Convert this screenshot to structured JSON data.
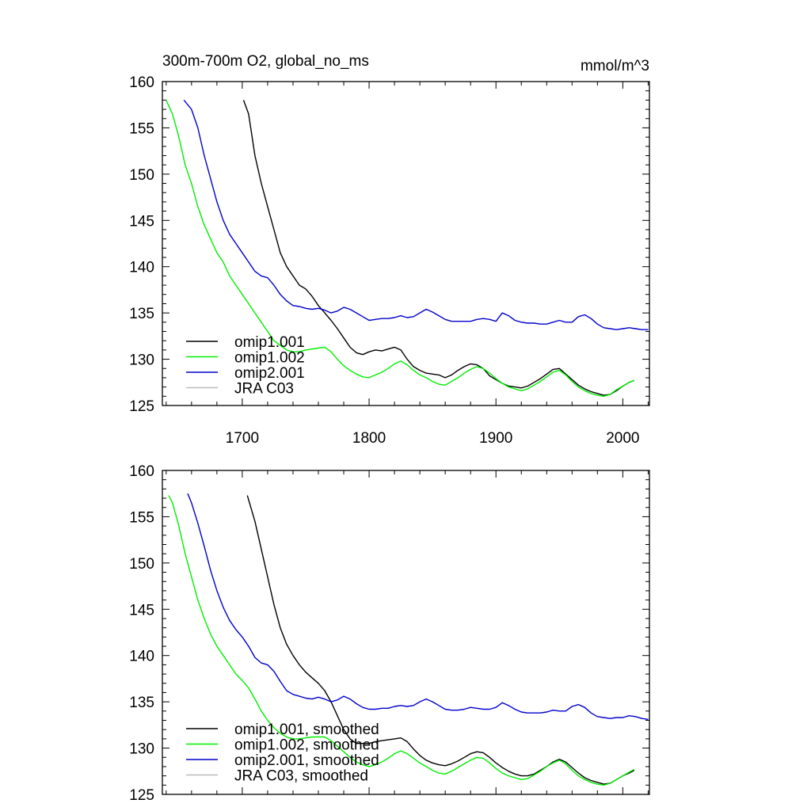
{
  "chart_data": [
    {
      "type": "line",
      "title": "300m-700m O2, global_no_ms",
      "units": "mmol/m^3",
      "xlim": [
        1637,
        2021
      ],
      "ylim": [
        125,
        160
      ],
      "x_ticks": [
        1700,
        1800,
        1900,
        2000
      ],
      "y_ticks": [
        125,
        130,
        135,
        140,
        145,
        150,
        155,
        160
      ],
      "x_tick_labels_shown": true,
      "legend_position": "bottom-left",
      "smoothed": false,
      "series": [
        {
          "name": "omip1.001",
          "color": "#000000",
          "x": [
            1701,
            1705,
            1710,
            1715,
            1720,
            1725,
            1730,
            1735,
            1740,
            1745,
            1750,
            1755,
            1760,
            1765,
            1770,
            1775,
            1780,
            1785,
            1790,
            1795,
            1800,
            1805,
            1810,
            1815,
            1820,
            1825,
            1830,
            1835,
            1840,
            1845,
            1850,
            1855,
            1860,
            1865,
            1870,
            1875,
            1880,
            1885,
            1890,
            1895,
            1900,
            1905,
            1910,
            1915,
            1920,
            1925,
            1930,
            1935,
            1940,
            1945,
            1950,
            1955,
            1960,
            1965,
            1970,
            1975,
            1980,
            1985,
            1990,
            1995,
            2000,
            2005,
            2009
          ],
          "y": [
            158.0,
            156.5,
            152.0,
            149.0,
            146.5,
            144.0,
            141.5,
            140.0,
            139.0,
            138.0,
            137.6,
            136.8,
            135.8,
            135.0,
            134.2,
            133.3,
            132.3,
            131.3,
            130.7,
            130.5,
            130.8,
            131.0,
            130.9,
            131.1,
            131.3,
            131.0,
            130.0,
            129.2,
            128.8,
            128.5,
            128.4,
            128.3,
            128.0,
            128.3,
            128.8,
            129.2,
            129.5,
            129.4,
            129.0,
            128.2,
            127.8,
            127.4,
            127.1,
            127.0,
            126.9,
            127.1,
            127.5,
            127.9,
            128.4,
            128.9,
            129.0,
            128.4,
            127.8,
            127.2,
            126.8,
            126.5,
            126.3,
            126.1,
            126.2,
            126.6,
            127.1,
            127.5,
            127.7
          ]
        },
        {
          "name": "omip1.002",
          "color": "#00ee00",
          "x": [
            1640,
            1645,
            1650,
            1655,
            1660,
            1665,
            1670,
            1675,
            1680,
            1685,
            1690,
            1695,
            1700,
            1705,
            1710,
            1715,
            1720,
            1725,
            1730,
            1735,
            1740,
            1745,
            1750,
            1755,
            1760,
            1765,
            1770,
            1775,
            1780,
            1785,
            1790,
            1795,
            1800,
            1805,
            1810,
            1815,
            1820,
            1825,
            1830,
            1835,
            1840,
            1845,
            1850,
            1855,
            1860,
            1865,
            1870,
            1875,
            1880,
            1885,
            1890,
            1895,
            1900,
            1905,
            1910,
            1915,
            1920,
            1925,
            1930,
            1935,
            1940,
            1945,
            1950,
            1955,
            1960,
            1965,
            1970,
            1975,
            1980,
            1985,
            1990,
            1995,
            2000,
            2005,
            2009
          ],
          "y": [
            158.0,
            156.5,
            154.0,
            151.0,
            149.0,
            146.5,
            144.5,
            143.0,
            141.5,
            140.5,
            139.0,
            138.0,
            137.0,
            136.0,
            135.0,
            134.0,
            133.0,
            132.0,
            131.5,
            131.0,
            130.8,
            130.8,
            131.0,
            131.1,
            131.2,
            131.3,
            130.8,
            130.0,
            129.3,
            128.8,
            128.4,
            128.1,
            128.0,
            128.3,
            128.6,
            129.0,
            129.5,
            129.8,
            129.4,
            128.8,
            128.3,
            128.0,
            127.6,
            127.3,
            127.2,
            127.6,
            128.0,
            128.5,
            128.9,
            129.2,
            129.0,
            128.5,
            127.9,
            127.4,
            127.0,
            126.8,
            126.6,
            126.8,
            127.2,
            127.6,
            128.1,
            128.6,
            128.8,
            128.3,
            127.6,
            127.0,
            126.6,
            126.3,
            126.1,
            126.0,
            126.2,
            126.7,
            127.1,
            127.5,
            127.7
          ]
        },
        {
          "name": "omip2.001",
          "color": "#0000cc",
          "x": [
            1654,
            1660,
            1665,
            1670,
            1675,
            1680,
            1685,
            1690,
            1695,
            1700,
            1705,
            1710,
            1715,
            1720,
            1725,
            1730,
            1735,
            1740,
            1745,
            1750,
            1755,
            1760,
            1765,
            1770,
            1775,
            1780,
            1785,
            1790,
            1795,
            1800,
            1805,
            1810,
            1815,
            1820,
            1825,
            1830,
            1835,
            1840,
            1845,
            1850,
            1855,
            1860,
            1865,
            1870,
            1875,
            1880,
            1885,
            1890,
            1895,
            1900,
            1905,
            1910,
            1915,
            1920,
            1925,
            1930,
            1935,
            1940,
            1945,
            1950,
            1955,
            1960,
            1965,
            1970,
            1975,
            1980,
            1985,
            1990,
            1995,
            2000,
            2005,
            2010,
            2015,
            2020
          ],
          "y": [
            158.0,
            157.0,
            155.0,
            152.0,
            149.5,
            147.0,
            145.0,
            143.5,
            142.5,
            141.5,
            140.5,
            139.5,
            139.0,
            138.8,
            138.0,
            137.0,
            136.3,
            135.8,
            135.7,
            135.5,
            135.4,
            135.5,
            135.3,
            135.0,
            135.2,
            135.6,
            135.4,
            135.0,
            134.6,
            134.2,
            134.3,
            134.4,
            134.4,
            134.5,
            134.7,
            134.5,
            134.6,
            135.0,
            135.4,
            135.1,
            134.7,
            134.3,
            134.1,
            134.1,
            134.1,
            134.1,
            134.3,
            134.4,
            134.3,
            134.1,
            135.0,
            134.7,
            134.2,
            134.0,
            133.9,
            133.9,
            133.8,
            133.8,
            134.0,
            134.2,
            134.0,
            134.0,
            134.6,
            134.8,
            134.4,
            133.8,
            133.4,
            133.3,
            133.2,
            133.3,
            133.4,
            133.3,
            133.2,
            133.2
          ]
        },
        {
          "name": "JRA C03",
          "color": "#bbbbbb",
          "x": [],
          "y": []
        }
      ]
    },
    {
      "type": "line",
      "title": "",
      "units": "",
      "xlim": [
        1637,
        2021
      ],
      "ylim": [
        125,
        160
      ],
      "x_ticks": [
        1700,
        1800,
        1900,
        2000
      ],
      "y_ticks": [
        125,
        130,
        135,
        140,
        145,
        150,
        155,
        160
      ],
      "x_tick_labels_shown": false,
      "legend_position": "bottom-left",
      "smoothed": true,
      "series": [
        {
          "name": "omip1.001, smoothed",
          "color": "#000000",
          "x": [
            1704,
            1710,
            1715,
            1720,
            1725,
            1730,
            1735,
            1740,
            1745,
            1750,
            1755,
            1760,
            1765,
            1770,
            1775,
            1780,
            1785,
            1790,
            1795,
            1800,
            1805,
            1810,
            1815,
            1820,
            1825,
            1830,
            1835,
            1840,
            1845,
            1850,
            1855,
            1860,
            1865,
            1870,
            1875,
            1880,
            1885,
            1890,
            1895,
            1900,
            1905,
            1910,
            1915,
            1920,
            1925,
            1930,
            1935,
            1940,
            1945,
            1950,
            1955,
            1960,
            1965,
            1970,
            1975,
            1980,
            1985,
            1990,
            1995,
            2000,
            2005,
            2009
          ],
          "y": [
            157.3,
            154.5,
            151.5,
            148.5,
            145.5,
            143.0,
            141.2,
            140.0,
            139.0,
            138.2,
            137.6,
            137.0,
            136.2,
            135.0,
            133.5,
            132.0,
            131.0,
            130.5,
            130.5,
            130.5,
            130.7,
            130.8,
            130.9,
            131.0,
            131.1,
            130.7,
            129.9,
            129.2,
            128.7,
            128.4,
            128.2,
            128.1,
            128.3,
            128.6,
            129.0,
            129.4,
            129.6,
            129.5,
            129.0,
            128.4,
            127.9,
            127.5,
            127.2,
            127.0,
            127.0,
            127.2,
            127.6,
            128.0,
            128.5,
            128.8,
            128.5,
            127.9,
            127.3,
            126.8,
            126.5,
            126.3,
            126.1,
            126.2,
            126.6,
            127.0,
            127.3,
            127.6
          ]
        },
        {
          "name": "omip1.002, smoothed",
          "color": "#00ee00",
          "x": [
            1642,
            1645,
            1650,
            1655,
            1660,
            1665,
            1670,
            1675,
            1680,
            1685,
            1690,
            1695,
            1700,
            1705,
            1710,
            1715,
            1720,
            1725,
            1730,
            1735,
            1740,
            1745,
            1750,
            1755,
            1760,
            1765,
            1770,
            1775,
            1780,
            1785,
            1790,
            1795,
            1800,
            1805,
            1810,
            1815,
            1820,
            1825,
            1830,
            1835,
            1840,
            1845,
            1850,
            1855,
            1860,
            1865,
            1870,
            1875,
            1880,
            1885,
            1890,
            1895,
            1900,
            1905,
            1910,
            1915,
            1920,
            1925,
            1930,
            1935,
            1940,
            1945,
            1950,
            1955,
            1960,
            1965,
            1970,
            1975,
            1980,
            1985,
            1990,
            1995,
            2000,
            2005,
            2009
          ],
          "y": [
            157.3,
            156.5,
            154.0,
            151.0,
            148.5,
            146.0,
            144.0,
            142.3,
            141.0,
            140.0,
            139.0,
            138.0,
            137.3,
            136.5,
            135.3,
            134.0,
            133.0,
            132.2,
            131.6,
            131.2,
            131.0,
            131.0,
            131.1,
            131.2,
            131.2,
            131.2,
            130.8,
            130.2,
            129.6,
            129.0,
            128.5,
            128.2,
            128.0,
            128.2,
            128.5,
            128.9,
            129.4,
            129.7,
            129.4,
            128.9,
            128.4,
            128.0,
            127.6,
            127.3,
            127.2,
            127.5,
            127.9,
            128.3,
            128.7,
            129.0,
            128.9,
            128.4,
            127.8,
            127.3,
            127.0,
            126.8,
            126.6,
            126.7,
            127.1,
            127.5,
            128.0,
            128.4,
            128.7,
            128.3,
            127.6,
            127.0,
            126.6,
            126.3,
            126.1,
            126.0,
            126.2,
            126.6,
            127.0,
            127.4,
            127.7
          ]
        },
        {
          "name": "omip2.001, smoothed",
          "color": "#0000cc",
          "x": [
            1657,
            1660,
            1665,
            1670,
            1675,
            1680,
            1685,
            1690,
            1695,
            1700,
            1705,
            1710,
            1715,
            1720,
            1725,
            1730,
            1735,
            1740,
            1745,
            1750,
            1755,
            1760,
            1765,
            1770,
            1775,
            1780,
            1785,
            1790,
            1795,
            1800,
            1805,
            1810,
            1815,
            1820,
            1825,
            1830,
            1835,
            1840,
            1845,
            1850,
            1855,
            1860,
            1865,
            1870,
            1875,
            1880,
            1885,
            1890,
            1895,
            1900,
            1905,
            1910,
            1915,
            1920,
            1925,
            1930,
            1935,
            1940,
            1945,
            1950,
            1955,
            1960,
            1965,
            1970,
            1975,
            1980,
            1985,
            1990,
            1995,
            2000,
            2005,
            2010,
            2015,
            2020
          ],
          "y": [
            157.5,
            156.5,
            154.3,
            151.8,
            149.2,
            147.0,
            145.2,
            143.8,
            142.8,
            142.0,
            141.0,
            139.8,
            139.2,
            139.0,
            138.3,
            137.2,
            136.2,
            135.8,
            135.6,
            135.4,
            135.3,
            135.5,
            135.3,
            135.0,
            135.2,
            135.6,
            135.3,
            134.8,
            134.4,
            134.2,
            134.2,
            134.3,
            134.3,
            134.5,
            134.6,
            134.5,
            134.6,
            135.0,
            135.3,
            135.0,
            134.6,
            134.2,
            134.1,
            134.1,
            134.2,
            134.4,
            134.3,
            134.2,
            134.2,
            134.4,
            134.9,
            134.6,
            134.2,
            133.9,
            133.8,
            133.8,
            133.8,
            133.9,
            134.1,
            134.0,
            134.0,
            134.5,
            134.7,
            134.4,
            133.8,
            133.4,
            133.3,
            133.2,
            133.3,
            133.3,
            133.5,
            133.4,
            133.2,
            133.1
          ]
        },
        {
          "name": "JRA C03, smoothed",
          "color": "#bbbbbb",
          "x": [],
          "y": []
        }
      ]
    }
  ]
}
